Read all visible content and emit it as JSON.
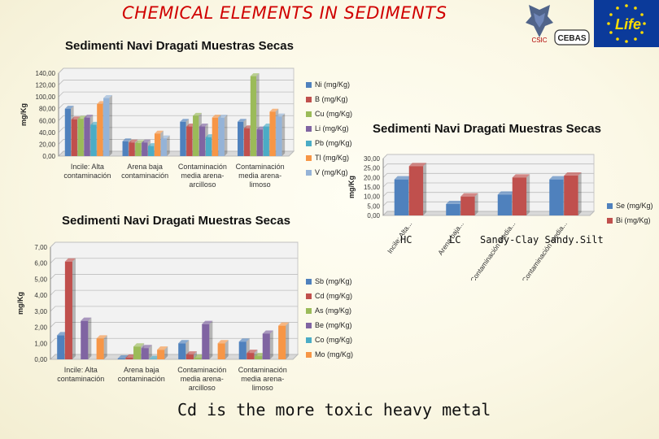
{
  "header": {
    "title": "CHEMICAL ELEMENTS IN SEDIMENTS",
    "csic_label": "CSIC",
    "cebas_label": "CEBAS",
    "life_label": "Life"
  },
  "footer": {
    "note": "Cd is the more toxic heavy metal"
  },
  "chart_labels": {
    "hc": "HC",
    "lc": "LC",
    "sc_ss": "Sandy-Clay Sandy.Silt"
  },
  "colors": {
    "blue": "#4f81bd",
    "red": "#c0504d",
    "green": "#9bbb59",
    "purple": "#8064a2",
    "teal": "#4bacc6",
    "orange": "#f79646",
    "lightblue": "#95b3d7"
  },
  "chart_data": [
    {
      "type": "bar",
      "title": "Sedimenti Navi Dragati Muestras Secas",
      "ylabel": "mg/Kg",
      "ylim": [
        0,
        140
      ],
      "yticks": [
        "0,00",
        "20,00",
        "40,00",
        "60,00",
        "80,00",
        "100,00",
        "120,00",
        "140,00"
      ],
      "categories": [
        [
          "Incile: Alta",
          "contaminación"
        ],
        [
          "Arena baja",
          "contaminación"
        ],
        [
          "Contaminación",
          "media arena-",
          "arcilloso"
        ],
        [
          "Contaminación",
          "media arena-",
          "limoso"
        ]
      ],
      "series": [
        {
          "name": "Ni (mg/Kg)",
          "color": "#4f81bd",
          "values": [
            80,
            25,
            58,
            58
          ]
        },
        {
          "name": "B (mg/Kg)",
          "color": "#c0504d",
          "values": [
            62,
            23,
            50,
            47
          ]
        },
        {
          "name": "Cu (mg/Kg)",
          "color": "#9bbb59",
          "values": [
            63,
            22,
            68,
            135
          ]
        },
        {
          "name": "Li (mg/Kg)",
          "color": "#8064a2",
          "values": [
            65,
            23,
            50,
            45
          ]
        },
        {
          "name": "Pb (mg/Kg)",
          "color": "#4bacc6",
          "values": [
            53,
            17,
            32,
            50
          ]
        },
        {
          "name": "Tl (mg/Kg)",
          "color": "#f79646",
          "values": [
            88,
            38,
            65,
            75
          ]
        },
        {
          "name": "V (mg/Kg)",
          "color": "#95b3d7",
          "values": [
            98,
            30,
            65,
            67
          ]
        }
      ]
    },
    {
      "type": "bar",
      "title": "Sedimenti Navi Dragati Muestras Secas",
      "ylabel": "mg/Kg",
      "ylim": [
        0,
        30
      ],
      "yticks": [
        "0,00",
        "5,00",
        "10,00",
        "15,00",
        "20,00",
        "25,00",
        "30,00"
      ],
      "categories": [
        [
          "Incile: Alta..."
        ],
        [
          "Arena baja..."
        ],
        [
          "Contaminación media..."
        ],
        [
          "Contaminación media..."
        ]
      ],
      "series": [
        {
          "name": "Se (mg/Kg)",
          "color": "#4f81bd",
          "values": [
            19,
            6,
            11,
            19
          ]
        },
        {
          "name": "Bi (mg/Kg)",
          "color": "#c0504d",
          "values": [
            26,
            10,
            20,
            21
          ]
        }
      ]
    },
    {
      "type": "bar",
      "title": "Sedimenti Navi Dragati Muestras Secas",
      "ylabel": "mg/Kg",
      "ylim": [
        0,
        7
      ],
      "yticks": [
        "0,00",
        "1,00",
        "2,00",
        "3,00",
        "4,00",
        "5,00",
        "6,00",
        "7,00"
      ],
      "categories": [
        [
          "Incile: Alta",
          "contaminación"
        ],
        [
          "Arena baja",
          "contaminación"
        ],
        [
          "Contaminación",
          "media arena-",
          "arcilloso"
        ],
        [
          "Contaminación",
          "media arena-",
          "limoso"
        ]
      ],
      "series": [
        {
          "name": "Sb (mg/Kg)",
          "color": "#4f81bd",
          "values": [
            1.5,
            0.05,
            1.0,
            1.1
          ]
        },
        {
          "name": "Cd (mg/Kg)",
          "color": "#c0504d",
          "values": [
            6.1,
            0.1,
            0.3,
            0.4
          ]
        },
        {
          "name": "As (mg/Kg)",
          "color": "#9bbb59",
          "values": [
            0,
            0.8,
            0.1,
            0.2
          ]
        },
        {
          "name": "Be (mg/Kg)",
          "color": "#8064a2",
          "values": [
            2.4,
            0.7,
            2.2,
            1.6
          ]
        },
        {
          "name": "Co (mg/Kg)",
          "color": "#4bacc6",
          "values": [
            0,
            0.02,
            0,
            0
          ]
        },
        {
          "name": "Mo (mg/Kg)",
          "color": "#f79646",
          "values": [
            1.3,
            0.6,
            1.0,
            2.1
          ]
        }
      ]
    }
  ]
}
